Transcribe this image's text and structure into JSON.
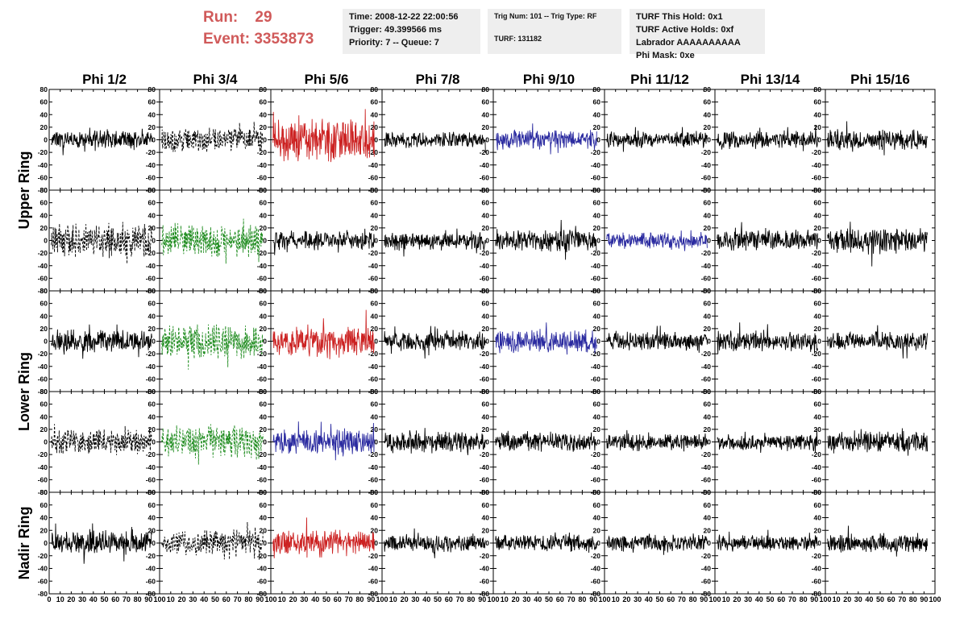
{
  "header": {
    "run_label": "Run:",
    "run_value": "29",
    "event_label": "Event:",
    "event_value": "3353873",
    "time": "Time: 2008-12-22 22:00:56",
    "trigger": "Trigger: 49.399566 ms",
    "priority": "Priority: 7 -- Queue: 7",
    "trig_num": "Trig Num: 101 -- Trig Type: RF",
    "turf": "TURF: 131182",
    "turf_this_hold": "TURF This Hold: 0x1",
    "turf_active_holds": "TURF Active Holds: 0xf",
    "labrador": "Labrador AAAAAAAAAA",
    "phi_mask": "Phi Mask: 0xe"
  },
  "chart_data": {
    "type": "line",
    "columns": [
      "Phi 1/2",
      "Phi 3/4",
      "Phi 5/6",
      "Phi 7/8",
      "Phi 9/10",
      "Phi 11/12",
      "Phi 13/14",
      "Phi 15/16"
    ],
    "ring_labels": [
      "Upper Ring",
      "Lower Ring",
      "Nadir Ring"
    ],
    "xlim": [
      0,
      100
    ],
    "ylim": [
      -80,
      80
    ],
    "x_tick_labels": [
      "0",
      "10",
      "20",
      "30",
      "40",
      "50",
      "60",
      "70",
      "80",
      "90",
      "100"
    ],
    "y_tick_labels": [
      "80",
      "60",
      "40",
      "20",
      "0",
      "-20",
      "-40",
      "-60",
      "-80"
    ],
    "colors": {
      "black": "#000000",
      "red": "#cc2222",
      "blue": "#2b2ba0",
      "green": "#1f8c1f",
      "header_red": "#d05a5a"
    },
    "panels": [
      [
        {
          "color": "black",
          "style": "solid",
          "amp": 12
        },
        {
          "color": "black",
          "style": "dashed",
          "amp": 16
        },
        {
          "color": "red",
          "style": "solid",
          "amp": 28
        },
        {
          "color": "black",
          "style": "solid",
          "amp": 10
        },
        {
          "color": "blue",
          "style": "solid",
          "amp": 13
        },
        {
          "color": "black",
          "style": "solid",
          "amp": 10
        },
        {
          "color": "black",
          "style": "solid",
          "amp": 11
        },
        {
          "color": "black",
          "style": "solid",
          "amp": 13
        }
      ],
      [
        {
          "color": "black",
          "style": "dashed",
          "amp": 22
        },
        {
          "color": "green",
          "style": "dashed",
          "amp": 20
        },
        {
          "color": "black",
          "style": "solid",
          "amp": 12
        },
        {
          "color": "black",
          "style": "solid",
          "amp": 12
        },
        {
          "color": "black",
          "style": "solid",
          "amp": 14
        },
        {
          "color": "blue",
          "style": "solid",
          "amp": 10
        },
        {
          "color": "black",
          "style": "solid",
          "amp": 13
        },
        {
          "color": "black",
          "style": "solid",
          "amp": 16
        }
      ],
      [
        {
          "color": "black",
          "style": "solid",
          "amp": 14
        },
        {
          "color": "green",
          "style": "dashed",
          "amp": 22
        },
        {
          "color": "red",
          "style": "solid",
          "amp": 20
        },
        {
          "color": "black",
          "style": "solid",
          "amp": 12
        },
        {
          "color": "blue",
          "style": "solid",
          "amp": 15
        },
        {
          "color": "black",
          "style": "solid",
          "amp": 12
        },
        {
          "color": "black",
          "style": "solid",
          "amp": 13
        },
        {
          "color": "black",
          "style": "solid",
          "amp": 12
        }
      ],
      [
        {
          "color": "black",
          "style": "dashed",
          "amp": 16
        },
        {
          "color": "green",
          "style": "dashed",
          "amp": 22
        },
        {
          "color": "blue",
          "style": "solid",
          "amp": 16
        },
        {
          "color": "black",
          "style": "solid",
          "amp": 14
        },
        {
          "color": "black",
          "style": "solid",
          "amp": 12
        },
        {
          "color": "black",
          "style": "solid",
          "amp": 11
        },
        {
          "color": "black",
          "style": "solid",
          "amp": 10
        },
        {
          "color": "black",
          "style": "solid",
          "amp": 14
        }
      ],
      [
        {
          "color": "black",
          "style": "solid",
          "amp": 16
        },
        {
          "color": "black",
          "style": "dashed",
          "amp": 16
        },
        {
          "color": "red",
          "style": "solid",
          "amp": 18
        },
        {
          "color": "black",
          "style": "solid",
          "amp": 11
        },
        {
          "color": "black",
          "style": "solid",
          "amp": 11
        },
        {
          "color": "black",
          "style": "solid",
          "amp": 11
        },
        {
          "color": "black",
          "style": "solid",
          "amp": 10
        },
        {
          "color": "black",
          "style": "solid",
          "amp": 12
        }
      ]
    ]
  }
}
